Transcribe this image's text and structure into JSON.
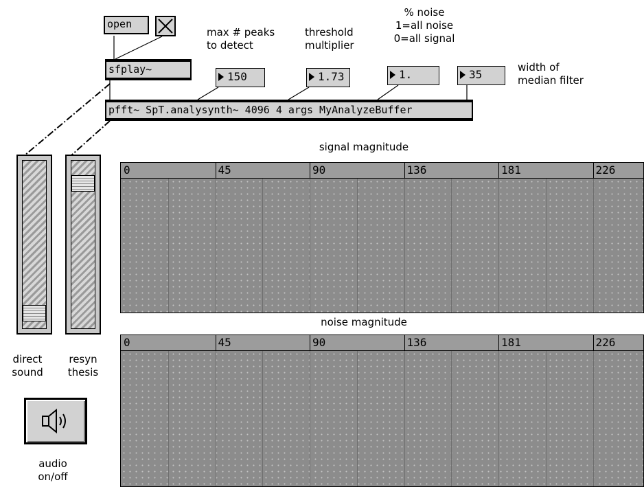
{
  "objects": {
    "open_label": "open",
    "sfplay_label": "sfplay~",
    "pfft_label": "pfft~ SpT.analysynth~ 4096 4 args MyAnalyzeBuffer"
  },
  "numbers": {
    "max_peaks": "150",
    "threshold": "1.73",
    "noise_pct": "1.",
    "median_width": "35"
  },
  "labels": {
    "max_peaks": "max # peaks\nto detect",
    "threshold": "threshold\nmultiplier",
    "noise_pct": "% noise\n1=all noise\n0=all signal",
    "median_width": "width of\nmedian filter",
    "signal_title": "signal magnitude",
    "noise_title": "noise magnitude",
    "direct": "direct\nsound",
    "resyn": "resyn\nthesis",
    "audio": "audio\non/off"
  },
  "sliders": {
    "direct_level": 0.06,
    "resyn_level": 0.9
  },
  "signal_ticks": [
    "0",
    "45",
    "90",
    "136",
    "181",
    "226"
  ],
  "noise_ticks": [
    "0",
    "45",
    "90",
    "136",
    "181",
    "226"
  ],
  "icons": {
    "toggle": "x-toggle-icon",
    "audio": "speaker-icon"
  },
  "colors": {
    "bg": "#ffffff",
    "object": "#d2d2d2",
    "plot": "#8c8c8c",
    "bar": "#000000"
  }
}
